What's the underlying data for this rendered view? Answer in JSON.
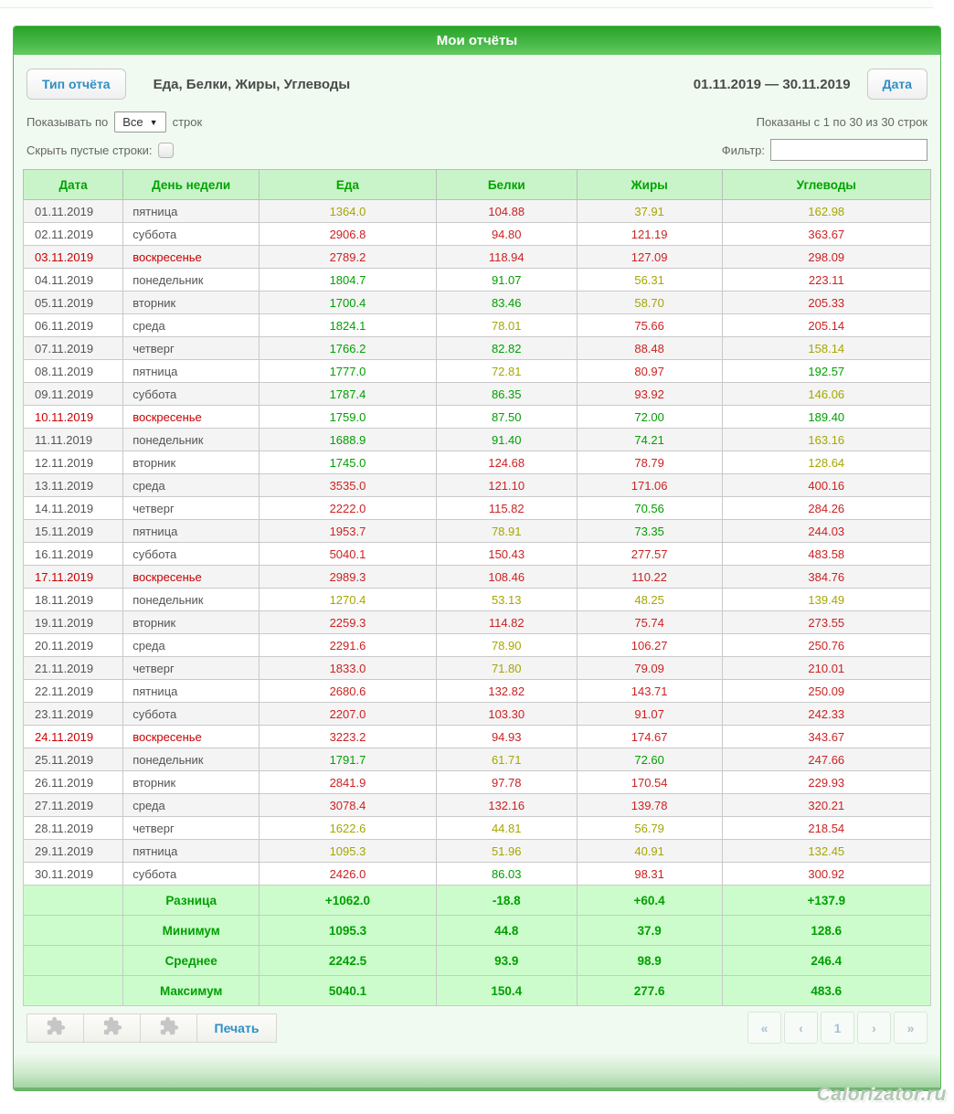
{
  "page": {
    "title": "Мои отчёты",
    "watermark": "Calorizator.ru"
  },
  "colors": {
    "accent_green": "#00a300",
    "value_green": "#00a000",
    "value_olive": "#a6a600",
    "value_red": "#cc2222",
    "sunday_red": "#cc0000",
    "button_blue": "#2e8fc5",
    "header_bg": "#c9f4c9",
    "summary_bg": "#ccfccc"
  },
  "toolbar": {
    "report_type_button": "Тип отчёта",
    "report_type_value": "Еда, Белки, Жиры, Углеводы",
    "date_range": "01.11.2019 — 30.11.2019",
    "date_button": "Дата"
  },
  "controls": {
    "show_per_label": "Показывать по",
    "show_per_value": "Все",
    "rows_label": "строк",
    "shown_info": "Показаны с 1 по 30 из 30 строк",
    "hide_empty_label": "Скрыть пустые строки:",
    "filter_label": "Фильтр:"
  },
  "table": {
    "headers": [
      "Дата",
      "День недели",
      "Еда",
      "Белки",
      "Жиры",
      "Углеводы"
    ],
    "rows": [
      {
        "date": "01.11.2019",
        "day": "пятница",
        "sunday": false,
        "values": [
          "1364.0",
          "104.88",
          "37.91",
          "162.98"
        ],
        "colors": [
          "olive",
          "red",
          "olive",
          "olive"
        ]
      },
      {
        "date": "02.11.2019",
        "day": "суббота",
        "sunday": false,
        "values": [
          "2906.8",
          "94.80",
          "121.19",
          "363.67"
        ],
        "colors": [
          "red",
          "red",
          "red",
          "red"
        ]
      },
      {
        "date": "03.11.2019",
        "day": "воскресенье",
        "sunday": true,
        "values": [
          "2789.2",
          "118.94",
          "127.09",
          "298.09"
        ],
        "colors": [
          "red",
          "red",
          "red",
          "red"
        ]
      },
      {
        "date": "04.11.2019",
        "day": "понедельник",
        "sunday": false,
        "values": [
          "1804.7",
          "91.07",
          "56.31",
          "223.11"
        ],
        "colors": [
          "green",
          "green",
          "olive",
          "red"
        ]
      },
      {
        "date": "05.11.2019",
        "day": "вторник",
        "sunday": false,
        "values": [
          "1700.4",
          "83.46",
          "58.70",
          "205.33"
        ],
        "colors": [
          "green",
          "green",
          "olive",
          "red"
        ]
      },
      {
        "date": "06.11.2019",
        "day": "среда",
        "sunday": false,
        "values": [
          "1824.1",
          "78.01",
          "75.66",
          "205.14"
        ],
        "colors": [
          "green",
          "olive",
          "red",
          "red"
        ]
      },
      {
        "date": "07.11.2019",
        "day": "четверг",
        "sunday": false,
        "values": [
          "1766.2",
          "82.82",
          "88.48",
          "158.14"
        ],
        "colors": [
          "green",
          "green",
          "red",
          "olive"
        ]
      },
      {
        "date": "08.11.2019",
        "day": "пятница",
        "sunday": false,
        "values": [
          "1777.0",
          "72.81",
          "80.97",
          "192.57"
        ],
        "colors": [
          "green",
          "olive",
          "red",
          "green"
        ]
      },
      {
        "date": "09.11.2019",
        "day": "суббота",
        "sunday": false,
        "values": [
          "1787.4",
          "86.35",
          "93.92",
          "146.06"
        ],
        "colors": [
          "green",
          "green",
          "red",
          "olive"
        ]
      },
      {
        "date": "10.11.2019",
        "day": "воскресенье",
        "sunday": true,
        "values": [
          "1759.0",
          "87.50",
          "72.00",
          "189.40"
        ],
        "colors": [
          "green",
          "green",
          "green",
          "green"
        ]
      },
      {
        "date": "11.11.2019",
        "day": "понедельник",
        "sunday": false,
        "values": [
          "1688.9",
          "91.40",
          "74.21",
          "163.16"
        ],
        "colors": [
          "green",
          "green",
          "green",
          "olive"
        ]
      },
      {
        "date": "12.11.2019",
        "day": "вторник",
        "sunday": false,
        "values": [
          "1745.0",
          "124.68",
          "78.79",
          "128.64"
        ],
        "colors": [
          "green",
          "red",
          "red",
          "olive"
        ]
      },
      {
        "date": "13.11.2019",
        "day": "среда",
        "sunday": false,
        "values": [
          "3535.0",
          "121.10",
          "171.06",
          "400.16"
        ],
        "colors": [
          "red",
          "red",
          "red",
          "red"
        ]
      },
      {
        "date": "14.11.2019",
        "day": "четверг",
        "sunday": false,
        "values": [
          "2222.0",
          "115.82",
          "70.56",
          "284.26"
        ],
        "colors": [
          "red",
          "red",
          "green",
          "red"
        ]
      },
      {
        "date": "15.11.2019",
        "day": "пятница",
        "sunday": false,
        "values": [
          "1953.7",
          "78.91",
          "73.35",
          "244.03"
        ],
        "colors": [
          "red",
          "olive",
          "green",
          "red"
        ]
      },
      {
        "date": "16.11.2019",
        "day": "суббота",
        "sunday": false,
        "values": [
          "5040.1",
          "150.43",
          "277.57",
          "483.58"
        ],
        "colors": [
          "red",
          "red",
          "red",
          "red"
        ]
      },
      {
        "date": "17.11.2019",
        "day": "воскресенье",
        "sunday": true,
        "values": [
          "2989.3",
          "108.46",
          "110.22",
          "384.76"
        ],
        "colors": [
          "red",
          "red",
          "red",
          "red"
        ]
      },
      {
        "date": "18.11.2019",
        "day": "понедельник",
        "sunday": false,
        "values": [
          "1270.4",
          "53.13",
          "48.25",
          "139.49"
        ],
        "colors": [
          "olive",
          "olive",
          "olive",
          "olive"
        ]
      },
      {
        "date": "19.11.2019",
        "day": "вторник",
        "sunday": false,
        "values": [
          "2259.3",
          "114.82",
          "75.74",
          "273.55"
        ],
        "colors": [
          "red",
          "red",
          "red",
          "red"
        ]
      },
      {
        "date": "20.11.2019",
        "day": "среда",
        "sunday": false,
        "values": [
          "2291.6",
          "78.90",
          "106.27",
          "250.76"
        ],
        "colors": [
          "red",
          "olive",
          "red",
          "red"
        ]
      },
      {
        "date": "21.11.2019",
        "day": "четверг",
        "sunday": false,
        "values": [
          "1833.0",
          "71.80",
          "79.09",
          "210.01"
        ],
        "colors": [
          "red",
          "olive",
          "red",
          "red"
        ]
      },
      {
        "date": "22.11.2019",
        "day": "пятница",
        "sunday": false,
        "values": [
          "2680.6",
          "132.82",
          "143.71",
          "250.09"
        ],
        "colors": [
          "red",
          "red",
          "red",
          "red"
        ]
      },
      {
        "date": "23.11.2019",
        "day": "суббота",
        "sunday": false,
        "values": [
          "2207.0",
          "103.30",
          "91.07",
          "242.33"
        ],
        "colors": [
          "red",
          "red",
          "red",
          "red"
        ]
      },
      {
        "date": "24.11.2019",
        "day": "воскресенье",
        "sunday": true,
        "values": [
          "3223.2",
          "94.93",
          "174.67",
          "343.67"
        ],
        "colors": [
          "red",
          "red",
          "red",
          "red"
        ]
      },
      {
        "date": "25.11.2019",
        "day": "понедельник",
        "sunday": false,
        "values": [
          "1791.7",
          "61.71",
          "72.60",
          "247.66"
        ],
        "colors": [
          "green",
          "olive",
          "green",
          "red"
        ]
      },
      {
        "date": "26.11.2019",
        "day": "вторник",
        "sunday": false,
        "values": [
          "2841.9",
          "97.78",
          "170.54",
          "229.93"
        ],
        "colors": [
          "red",
          "red",
          "red",
          "red"
        ]
      },
      {
        "date": "27.11.2019",
        "day": "среда",
        "sunday": false,
        "values": [
          "3078.4",
          "132.16",
          "139.78",
          "320.21"
        ],
        "colors": [
          "red",
          "red",
          "red",
          "red"
        ]
      },
      {
        "date": "28.11.2019",
        "day": "четверг",
        "sunday": false,
        "values": [
          "1622.6",
          "44.81",
          "56.79",
          "218.54"
        ],
        "colors": [
          "olive",
          "olive",
          "olive",
          "red"
        ]
      },
      {
        "date": "29.11.2019",
        "day": "пятница",
        "sunday": false,
        "values": [
          "1095.3",
          "51.96",
          "40.91",
          "132.45"
        ],
        "colors": [
          "olive",
          "olive",
          "olive",
          "olive"
        ]
      },
      {
        "date": "30.11.2019",
        "day": "суббота",
        "sunday": false,
        "values": [
          "2426.0",
          "86.03",
          "98.31",
          "300.92"
        ],
        "colors": [
          "red",
          "green",
          "red",
          "red"
        ]
      }
    ],
    "summary": [
      {
        "label": "Разница",
        "values": [
          "+1062.0",
          "-18.8",
          "+60.4",
          "+137.9"
        ]
      },
      {
        "label": "Минимум",
        "values": [
          "1095.3",
          "44.8",
          "37.9",
          "128.6"
        ]
      },
      {
        "label": "Среднее",
        "values": [
          "2242.5",
          "93.9",
          "98.9",
          "246.4"
        ]
      },
      {
        "label": "Максимум",
        "values": [
          "5040.1",
          "150.4",
          "277.6",
          "483.6"
        ]
      }
    ]
  },
  "footer": {
    "print_button": "Печать",
    "pagination": [
      "«",
      "‹",
      "1",
      "›",
      "»"
    ]
  }
}
